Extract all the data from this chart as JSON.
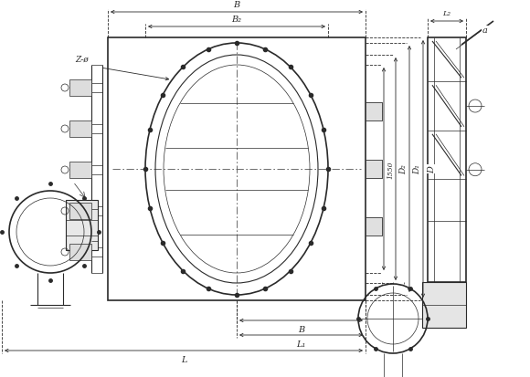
{
  "bg_color": "#ffffff",
  "line_color": "#2a2a2a",
  "dim_color": "#2a2a2a",
  "fig_width": 5.8,
  "fig_height": 4.14,
  "dpi": 100,
  "labels": {
    "B_top": "B",
    "B2": "B₂",
    "B_bot": "B",
    "L": "L",
    "L1": "L₁",
    "L2": "L₂",
    "D": "D",
    "D1": "D₁",
    "D2": "D₂",
    "dim_1550": "1550",
    "Z_phi": "Z-ø",
    "a": "a"
  }
}
